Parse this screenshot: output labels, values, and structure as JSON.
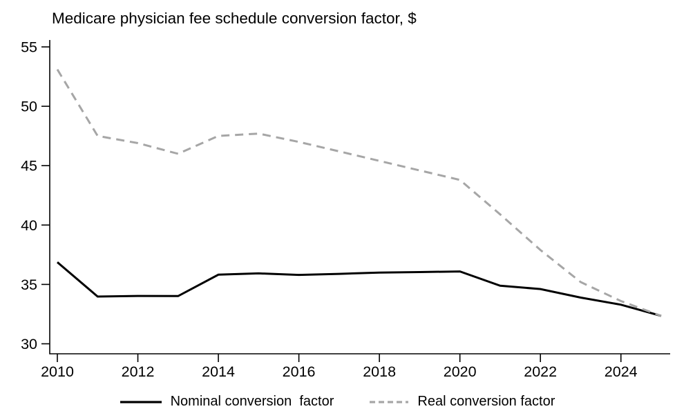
{
  "chart_data": {
    "type": "line",
    "title": "Medicare physician fee schedule conversion factor, $",
    "xlabel": "",
    "ylabel": "",
    "x": [
      2010,
      2011,
      2012,
      2013,
      2014,
      2015,
      2016,
      2017,
      2018,
      2019,
      2020,
      2021,
      2022,
      2023,
      2024,
      2025
    ],
    "series": [
      {
        "name": "Nominal conversion  factor",
        "style": "solid",
        "color": "#000000",
        "values": [
          36.87,
          33.98,
          34.03,
          34.02,
          35.82,
          35.93,
          35.8,
          35.89,
          36.0,
          36.04,
          36.09,
          34.89,
          34.61,
          33.89,
          33.29,
          32.35
        ]
      },
      {
        "name": "Real conversion factor",
        "style": "dashed",
        "color": "#a6a6a6",
        "values": [
          53.1,
          47.5,
          46.9,
          46.0,
          47.5,
          47.7,
          47.0,
          46.2,
          45.4,
          44.6,
          43.8,
          40.9,
          37.9,
          35.2,
          33.6,
          32.35
        ]
      }
    ],
    "xlim": [
      2010,
      2025
    ],
    "ylim": [
      30,
      55
    ],
    "x_ticks": [
      2010,
      2012,
      2014,
      2016,
      2018,
      2020,
      2022,
      2024
    ],
    "y_ticks": [
      30,
      35,
      40,
      45,
      50,
      55
    ],
    "grid": false,
    "legend_position": "bottom"
  }
}
